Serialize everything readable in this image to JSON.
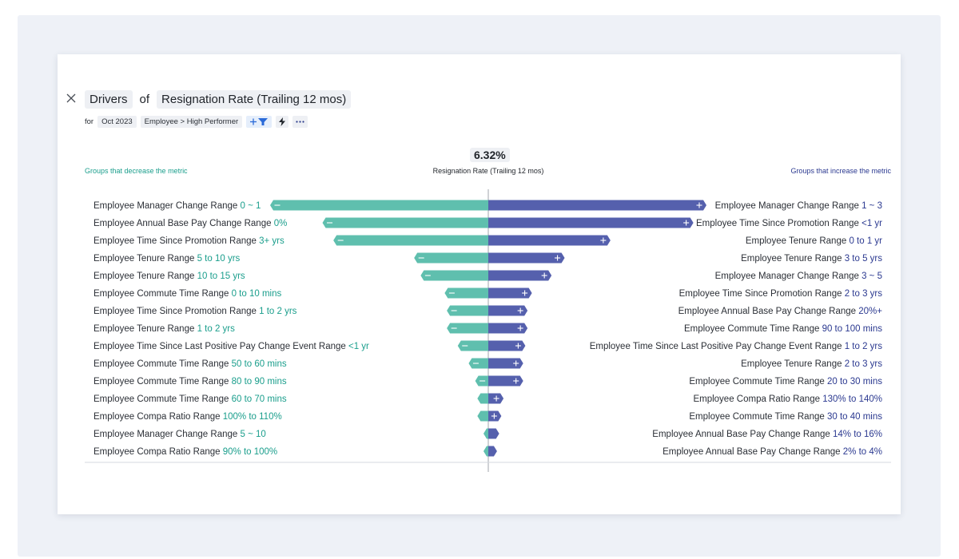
{
  "header": {
    "title_drivers": "Drivers",
    "title_of": "of",
    "title_metric": "Resignation Rate (Trailing 12 mos)",
    "for_label": "for",
    "period": "Oct 2023",
    "filter": "Employee > High Performer"
  },
  "icons": {
    "close": "close-icon",
    "add_filter": "add-filter-icon",
    "lightning": "lightning-icon",
    "more": "more-icon"
  },
  "colors": {
    "decrease": "#5fbfae",
    "increase": "#5560ad",
    "decrease_text": "#1a9e8c",
    "increase_text": "#2b3990"
  },
  "chart_data": {
    "type": "bar",
    "title": "6.32%",
    "subtitle": "Resignation Rate (Trailing 12 mos)",
    "legend_left": "Groups that decrease the metric",
    "legend_right": "Groups that increase the metric",
    "max_value": 100,
    "left": [
      {
        "name": "Employee Manager Change Range",
        "value": "0 ~ 1",
        "impact": 100
      },
      {
        "name": "Employee Annual Base Pay Change Range",
        "value": "0%",
        "impact": 76
      },
      {
        "name": "Employee Time Since Promotion Range",
        "value": "3+ yrs",
        "impact": 71
      },
      {
        "name": "Employee Tenure Range",
        "value": "5 to 10 yrs",
        "impact": 34
      },
      {
        "name": "Employee Tenure Range",
        "value": "10 to 15 yrs",
        "impact": 31
      },
      {
        "name": "Employee Commute Time Range",
        "value": "0 to 10 mins",
        "impact": 20
      },
      {
        "name": "Employee Time Since Promotion Range",
        "value": "1 to 2 yrs",
        "impact": 19
      },
      {
        "name": "Employee Tenure Range",
        "value": "1 to 2 yrs",
        "impact": 19
      },
      {
        "name": "Employee Time Since Last Positive Pay Change Event Range",
        "value": "<1 yr",
        "impact": 14
      },
      {
        "name": "Employee Commute Time Range",
        "value": "50 to 60 mins",
        "impact": 9
      },
      {
        "name": "Employee Commute Time Range",
        "value": "80 to 90 mins",
        "impact": 6
      },
      {
        "name": "Employee Commute Time Range",
        "value": "60 to 70 mins",
        "impact": 5
      },
      {
        "name": "Employee Compa Ratio Range",
        "value": "100% to 110%",
        "impact": 5
      },
      {
        "name": "Employee Manager Change Range",
        "value": "5 ~ 10",
        "impact": 2
      },
      {
        "name": "Employee Compa Ratio Range",
        "value": "90% to 100%",
        "impact": 2
      }
    ],
    "right": [
      {
        "name": "Employee Manager Change Range",
        "value": "1 ~ 3",
        "impact": 100
      },
      {
        "name": "Employee Time Since Promotion Range",
        "value": "<1 yr",
        "impact": 94
      },
      {
        "name": "Employee Tenure Range",
        "value": "0 to 1 yr",
        "impact": 56
      },
      {
        "name": "Employee Tenure Range",
        "value": "3 to 5 yrs",
        "impact": 35
      },
      {
        "name": "Employee Manager Change Range",
        "value": "3 ~ 5",
        "impact": 29
      },
      {
        "name": "Employee Time Since Promotion Range",
        "value": "2 to 3 yrs",
        "impact": 20
      },
      {
        "name": "Employee Annual Base Pay Change Range",
        "value": "20%+",
        "impact": 18
      },
      {
        "name": "Employee Commute Time Range",
        "value": "90 to 100 mins",
        "impact": 18
      },
      {
        "name": "Employee Time Since Last Positive Pay Change Event Range",
        "value": "1 to 2 yrs",
        "impact": 17
      },
      {
        "name": "Employee Tenure Range",
        "value": "2 to 3 yrs",
        "impact": 16
      },
      {
        "name": "Employee Commute Time Range",
        "value": "20 to 30 mins",
        "impact": 16
      },
      {
        "name": "Employee Compa Ratio Range",
        "value": "130% to 140%",
        "impact": 7
      },
      {
        "name": "Employee Commute Time Range",
        "value": "30 to 40 mins",
        "impact": 6
      },
      {
        "name": "Employee Annual Base Pay Change Range",
        "value": "14% to 16%",
        "impact": 5
      },
      {
        "name": "Employee Annual Base Pay Change Range",
        "value": "2% to 4%",
        "impact": 4
      }
    ]
  }
}
